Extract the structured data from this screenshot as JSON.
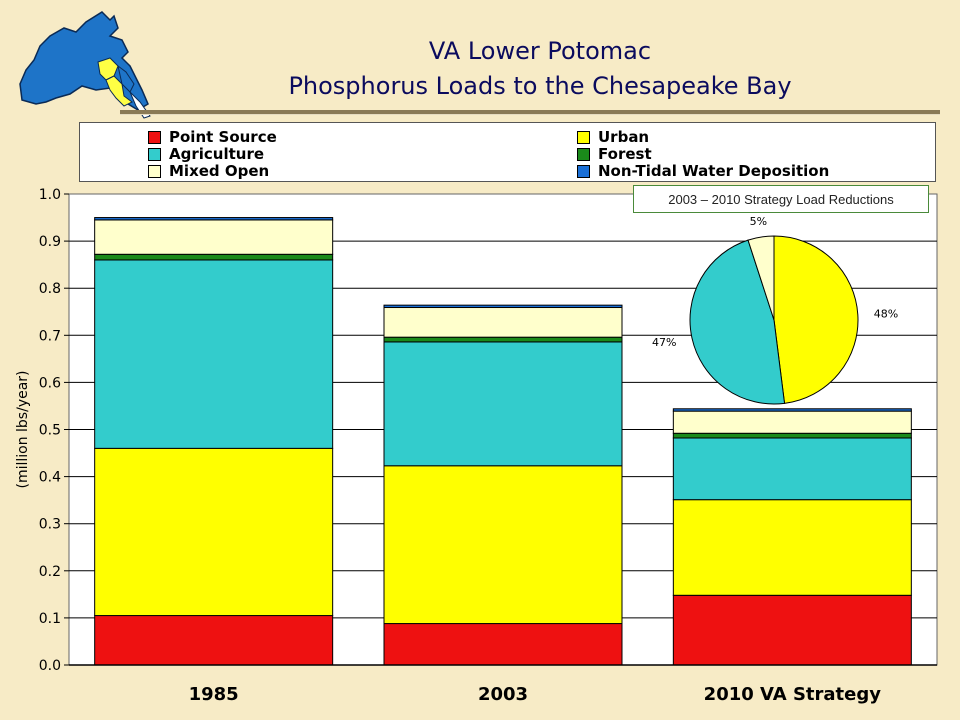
{
  "header": {
    "title_line1": "VA Lower Potomac",
    "title_line2": "Phosphorus Loads to the Chesapeake Bay"
  },
  "legend": [
    {
      "label": "Point Source",
      "color": "#ee1111"
    },
    {
      "label": "Agriculture",
      "color": "#33cccc"
    },
    {
      "label": "Mixed Open",
      "color": "#ffffcc"
    },
    {
      "label": "Urban",
      "color": "#ffff00"
    },
    {
      "label": "Forest",
      "color": "#1a8a1a"
    },
    {
      "label": "Non-Tidal Water Deposition",
      "color": "#1a6fd6"
    }
  ],
  "chart_data": [
    {
      "type": "bar",
      "stacked": true,
      "categories": [
        "1985",
        "2003",
        "2010 VA Strategy"
      ],
      "ylabel": "(million lbs/year)",
      "ylim": [
        0,
        1.0
      ],
      "yticks": [
        "0.0",
        "0.1",
        "0.2",
        "0.3",
        "0.4",
        "0.5",
        "0.6",
        "0.7",
        "0.8",
        "0.9",
        "1.0"
      ],
      "grid": true,
      "series": [
        {
          "name": "Point Source",
          "color": "#ee1111",
          "values": [
            0.105,
            0.088,
            0.148
          ]
        },
        {
          "name": "Urban",
          "color": "#ffff00",
          "values": [
            0.355,
            0.335,
            0.203
          ]
        },
        {
          "name": "Agriculture",
          "color": "#33cccc",
          "values": [
            0.4,
            0.263,
            0.131
          ]
        },
        {
          "name": "Forest",
          "color": "#1a8a1a",
          "values": [
            0.012,
            0.01,
            0.01
          ]
        },
        {
          "name": "Mixed Open",
          "color": "#ffffcc",
          "values": [
            0.073,
            0.063,
            0.047
          ]
        },
        {
          "name": "Non-Tidal Water Deposition",
          "color": "#1a6fd6",
          "values": [
            0.005,
            0.005,
            0.005
          ]
        }
      ]
    },
    {
      "type": "pie",
      "title": "2003 – 2010 Strategy Load Reductions",
      "slices": [
        {
          "name": "Urban",
          "value": 48,
          "label": "48%",
          "color": "#ffff00"
        },
        {
          "name": "Agriculture",
          "value": 47,
          "label": "47%",
          "color": "#33cccc"
        },
        {
          "name": "Mixed Open",
          "value": 5,
          "label": "5%",
          "color": "#ffffcc"
        }
      ]
    }
  ]
}
